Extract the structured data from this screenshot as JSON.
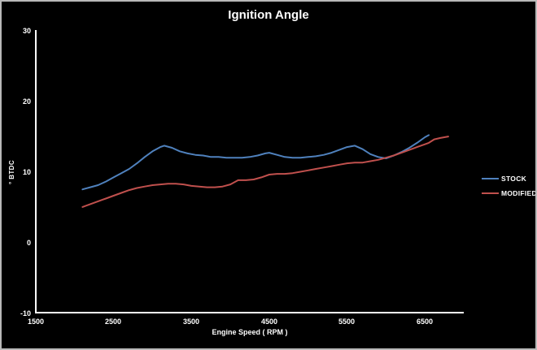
{
  "window": {
    "background_color": "#000000",
    "border_color": "#b9b9b9",
    "text_color": "#ffffff",
    "axis_color": "#ffffff"
  },
  "chart_data": {
    "type": "line",
    "title": "Ignition Angle",
    "xlabel": "Engine Speed ( RPM )",
    "ylabel": "° BTDC",
    "xlim": [
      1500,
      7000
    ],
    "ylim": [
      -10,
      30
    ],
    "x_ticks": [
      "1500",
      "2500",
      "3500",
      "4500",
      "5500",
      "6500"
    ],
    "y_ticks": [
      "30",
      "20",
      "10",
      "0",
      "-10"
    ],
    "grid": false,
    "legend_position": "right",
    "series": [
      {
        "name": "STOCK",
        "color": "#4F81BD",
        "points": [
          [
            2100,
            7.5
          ],
          [
            2200,
            7.8
          ],
          [
            2300,
            8.1
          ],
          [
            2400,
            8.6
          ],
          [
            2500,
            9.2
          ],
          [
            2600,
            9.8
          ],
          [
            2700,
            10.4
          ],
          [
            2800,
            11.2
          ],
          [
            2900,
            12.1
          ],
          [
            3000,
            12.9
          ],
          [
            3100,
            13.5
          ],
          [
            3150,
            13.7
          ],
          [
            3250,
            13.4
          ],
          [
            3350,
            12.9
          ],
          [
            3450,
            12.6
          ],
          [
            3550,
            12.4
          ],
          [
            3650,
            12.3
          ],
          [
            3750,
            12.1
          ],
          [
            3850,
            12.1
          ],
          [
            3950,
            12.0
          ],
          [
            4050,
            12.0
          ],
          [
            4150,
            12.0
          ],
          [
            4250,
            12.1
          ],
          [
            4350,
            12.3
          ],
          [
            4450,
            12.6
          ],
          [
            4500,
            12.7
          ],
          [
            4600,
            12.4
          ],
          [
            4700,
            12.1
          ],
          [
            4800,
            12.0
          ],
          [
            4900,
            12.0
          ],
          [
            5000,
            12.1
          ],
          [
            5100,
            12.2
          ],
          [
            5200,
            12.4
          ],
          [
            5300,
            12.7
          ],
          [
            5400,
            13.1
          ],
          [
            5500,
            13.5
          ],
          [
            5600,
            13.7
          ],
          [
            5700,
            13.2
          ],
          [
            5800,
            12.5
          ],
          [
            5900,
            12.1
          ],
          [
            6000,
            11.9
          ],
          [
            6100,
            12.3
          ],
          [
            6200,
            12.8
          ],
          [
            6300,
            13.4
          ],
          [
            6400,
            14.1
          ],
          [
            6500,
            14.9
          ],
          [
            6550,
            15.2
          ]
        ]
      },
      {
        "name": "MODIFIED",
        "color": "#C0504D",
        "points": [
          [
            2100,
            5.0
          ],
          [
            2200,
            5.4
          ],
          [
            2300,
            5.8
          ],
          [
            2400,
            6.2
          ],
          [
            2500,
            6.6
          ],
          [
            2600,
            7.0
          ],
          [
            2700,
            7.4
          ],
          [
            2800,
            7.7
          ],
          [
            2900,
            7.9
          ],
          [
            3000,
            8.1
          ],
          [
            3100,
            8.2
          ],
          [
            3200,
            8.3
          ],
          [
            3300,
            8.3
          ],
          [
            3400,
            8.2
          ],
          [
            3500,
            8.0
          ],
          [
            3600,
            7.9
          ],
          [
            3700,
            7.8
          ],
          [
            3800,
            7.8
          ],
          [
            3900,
            7.9
          ],
          [
            4000,
            8.2
          ],
          [
            4100,
            8.8
          ],
          [
            4200,
            8.8
          ],
          [
            4300,
            8.9
          ],
          [
            4400,
            9.2
          ],
          [
            4500,
            9.6
          ],
          [
            4600,
            9.7
          ],
          [
            4700,
            9.7
          ],
          [
            4800,
            9.8
          ],
          [
            4900,
            10.0
          ],
          [
            5000,
            10.2
          ],
          [
            5100,
            10.4
          ],
          [
            5200,
            10.6
          ],
          [
            5300,
            10.8
          ],
          [
            5400,
            11.0
          ],
          [
            5500,
            11.2
          ],
          [
            5600,
            11.3
          ],
          [
            5700,
            11.3
          ],
          [
            5800,
            11.5
          ],
          [
            5900,
            11.7
          ],
          [
            6000,
            12.0
          ],
          [
            6100,
            12.3
          ],
          [
            6200,
            12.7
          ],
          [
            6300,
            13.1
          ],
          [
            6400,
            13.5
          ],
          [
            6500,
            13.9
          ],
          [
            6550,
            14.1
          ],
          [
            6620,
            14.6
          ],
          [
            6700,
            14.8
          ],
          [
            6800,
            15.0
          ]
        ]
      }
    ]
  }
}
